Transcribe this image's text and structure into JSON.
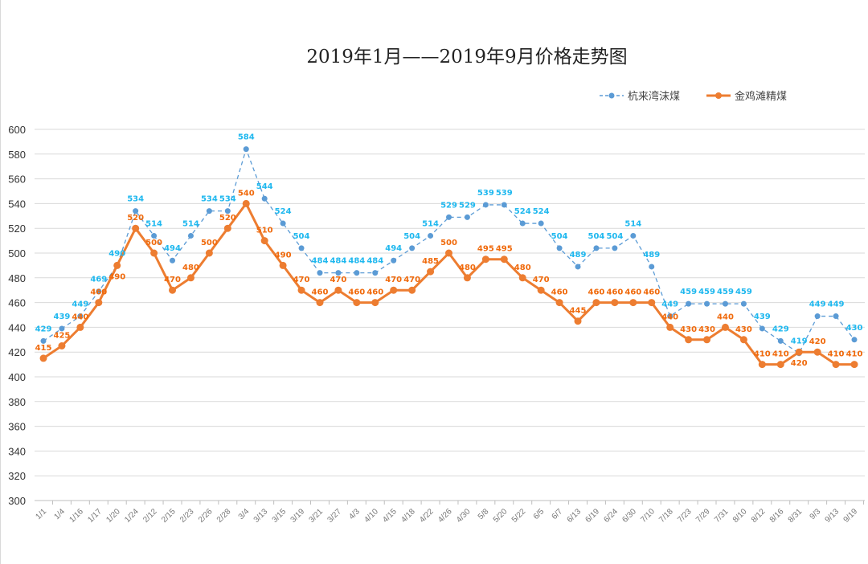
{
  "chart_data": {
    "type": "line",
    "title": "2019年1月——2019年9月价格走势图",
    "xlabel": "",
    "ylabel": "",
    "ylim": [
      300,
      600
    ],
    "yticks": [
      300,
      320,
      340,
      360,
      380,
      400,
      420,
      440,
      460,
      480,
      500,
      520,
      540,
      560,
      580,
      600
    ],
    "grid": true,
    "legend_position": "top-right",
    "categories": [
      "1/1",
      "1/4",
      "1/16",
      "1/17",
      "1/20",
      "1/24",
      "2/12",
      "2/15",
      "2/23",
      "2/26",
      "2/28",
      "3/4",
      "3/13",
      "3/15",
      "3/19",
      "3/21",
      "3/27",
      "4/3",
      "4/10",
      "4/15",
      "4/18",
      "4/22",
      "4/26",
      "4/30",
      "5/8",
      "5/20",
      "5/22",
      "6/5",
      "6/7",
      "6/13",
      "6/19",
      "6/24",
      "6/30",
      "7/10",
      "7/18",
      "7/23",
      "7/29",
      "7/31",
      "8/10",
      "8/12",
      "8/16",
      "8/31",
      "9/3",
      "9/13",
      "9/19"
    ],
    "series": [
      {
        "name": "杭来湾沫煤",
        "color": "#5b9bd5",
        "style": "dashed-markers",
        "values": [
          429,
          439,
          449,
          469,
          490,
          534,
          514,
          494,
          514,
          534,
          534,
          584,
          544,
          524,
          504,
          484,
          484,
          484,
          484,
          494,
          504,
          514,
          529,
          529,
          539,
          539,
          524,
          524,
          504,
          489,
          504,
          504,
          514,
          489,
          449,
          459,
          459,
          459,
          459,
          439,
          429,
          419,
          449,
          449,
          430
        ]
      },
      {
        "name": "金鸡滩精煤",
        "color": "#ed7d31",
        "style": "solid-markers",
        "values": [
          415,
          425,
          440,
          460,
          490,
          520,
          500,
          470,
          480,
          500,
          520,
          540,
          510,
          490,
          470,
          460,
          470,
          460,
          460,
          470,
          470,
          485,
          500,
          480,
          495,
          495,
          480,
          470,
          460,
          445,
          460,
          460,
          460,
          460,
          440,
          430,
          430,
          440,
          430,
          410,
          410,
          420,
          420,
          410,
          410
        ]
      }
    ],
    "label_colors": {
      "series_0": "#1fb8ef",
      "series_1": "#f06a0c"
    }
  }
}
